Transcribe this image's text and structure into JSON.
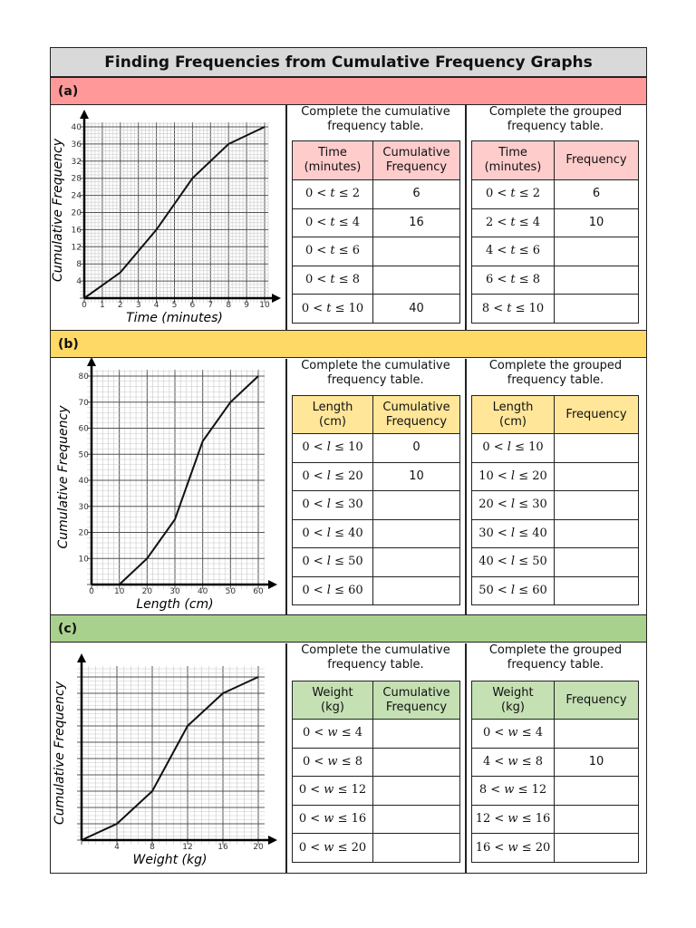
{
  "title": "Finding Frequencies from Cumulative Frequency Graphs",
  "sections": [
    {
      "label": "(a)",
      "band_color": "#ff9999",
      "header_color": "#ffcccc",
      "cum_instruction": "Complete the cumulative\nfrequency table.",
      "grp_instruction": "Complete the grouped\nfrequency table.",
      "cum_table": {
        "headers": [
          "Time\n(minutes)",
          "Cumulative\nFrequency"
        ],
        "rows": [
          [
            "0 < t ≤ 2",
            "6"
          ],
          [
            "0 < t ≤ 4",
            "16"
          ],
          [
            "0 < t ≤ 6",
            ""
          ],
          [
            "0 < t ≤ 8",
            ""
          ],
          [
            "0 < t ≤ 10",
            "40"
          ]
        ]
      },
      "grp_table": {
        "headers": [
          "Time\n(minutes)",
          "Frequency"
        ],
        "rows": [
          [
            "0 < t ≤ 2",
            "6"
          ],
          [
            "2 < t ≤ 4",
            "10"
          ],
          [
            "4 < t ≤ 6",
            ""
          ],
          [
            "6 < t ≤ 8",
            ""
          ],
          [
            "8 < t ≤ 10",
            ""
          ]
        ]
      },
      "chart_data": {
        "type": "line",
        "xlabel": "Time (minutes)",
        "ylabel": "Cumulative Frequency",
        "xlim": [
          0,
          10
        ],
        "ylim": [
          0,
          40
        ],
        "xticks": [
          "0",
          "1",
          "2",
          "3",
          "4",
          "5",
          "6",
          "7",
          "8",
          "9",
          "10"
        ],
        "yticks": [
          "4",
          "8",
          "12",
          "16",
          "20",
          "24",
          "28",
          "32",
          "36",
          "40"
        ],
        "grid": true,
        "x": [
          0,
          2,
          4,
          6,
          8,
          10
        ],
        "y": [
          0,
          6,
          16,
          28,
          36,
          40
        ]
      }
    },
    {
      "label": "(b)",
      "band_color": "#ffd966",
      "header_color": "#ffe699",
      "cum_instruction": "Complete the cumulative\nfrequency table.",
      "grp_instruction": "Complete the grouped\nfrequency table.",
      "cum_table": {
        "headers": [
          "Length\n(cm)",
          "Cumulative\nFrequency"
        ],
        "rows": [
          [
            "0 < l ≤ 10",
            "0"
          ],
          [
            "0 < l ≤ 20",
            "10"
          ],
          [
            "0 < l ≤ 30",
            ""
          ],
          [
            "0 < l ≤ 40",
            ""
          ],
          [
            "0 < l ≤ 50",
            ""
          ],
          [
            "0 < l ≤ 60",
            ""
          ]
        ]
      },
      "grp_table": {
        "headers": [
          "Length\n(cm)",
          "Frequency"
        ],
        "rows": [
          [
            "0 < l ≤ 10",
            ""
          ],
          [
            "10 < l ≤ 20",
            ""
          ],
          [
            "20 < l ≤ 30",
            ""
          ],
          [
            "30 < l ≤ 40",
            ""
          ],
          [
            "40 < l ≤ 50",
            ""
          ],
          [
            "50 < l ≤ 60",
            ""
          ]
        ]
      },
      "chart_data": {
        "type": "line",
        "xlabel": "Length (cm)",
        "ylabel": "Cumulative Frequency",
        "xlim": [
          0,
          60
        ],
        "ylim": [
          0,
          80
        ],
        "xticks": [
          "0",
          "10",
          "20",
          "30",
          "40",
          "50",
          "60"
        ],
        "yticks": [
          "10",
          "20",
          "30",
          "40",
          "50",
          "60",
          "70",
          "80"
        ],
        "grid": true,
        "x": [
          10,
          20,
          30,
          40,
          50,
          60
        ],
        "y": [
          0,
          10,
          25,
          55,
          70,
          80
        ]
      }
    },
    {
      "label": "(c)",
      "band_color": "#a9d18e",
      "header_color": "#c5e0b3",
      "cum_instruction": "Complete the cumulative\nfrequency table.",
      "grp_instruction": "Complete the grouped\nfrequency table.",
      "cum_table": {
        "headers": [
          "Weight\n(kg)",
          "Cumulative\nFrequency"
        ],
        "rows": [
          [
            "0 < w ≤ 4",
            ""
          ],
          [
            "0 < w ≤ 8",
            ""
          ],
          [
            "0 < w ≤ 12",
            ""
          ],
          [
            "0 < w ≤ 16",
            ""
          ],
          [
            "0 < w ≤ 20",
            ""
          ]
        ]
      },
      "grp_table": {
        "headers": [
          "Weight\n(kg)",
          "Frequency"
        ],
        "rows": [
          [
            "0 < w ≤ 4",
            ""
          ],
          [
            "4 < w ≤ 8",
            "10"
          ],
          [
            "8 < w ≤ 12",
            ""
          ],
          [
            "12 < w ≤ 16",
            ""
          ],
          [
            "16 < w ≤ 20",
            ""
          ]
        ]
      },
      "chart_data": {
        "type": "line",
        "xlabel": "Weight (kg)",
        "ylabel": "Cumulative Frequency",
        "xlim": [
          0,
          20
        ],
        "xticks": [
          "4",
          "8",
          "12",
          "16",
          "20"
        ],
        "yticks": [],
        "y_unit": "unlabelled grid squares",
        "grid": true,
        "x": [
          0,
          4,
          8,
          12,
          16,
          20
        ],
        "y": [
          0,
          1,
          3,
          7,
          9,
          10
        ]
      }
    }
  ]
}
